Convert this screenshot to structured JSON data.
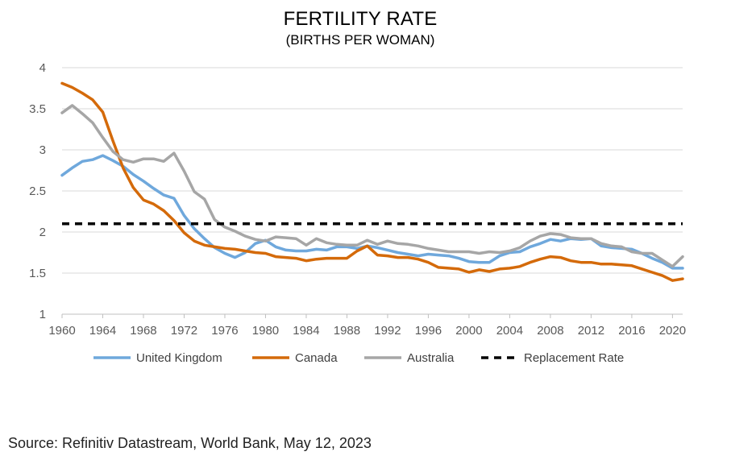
{
  "chart_data": {
    "type": "line",
    "title": "FERTILITY RATE",
    "subtitle": "(BIRTHS PER WOMAN)",
    "xlabel": "",
    "ylabel": "",
    "xlim": [
      1960,
      2021
    ],
    "ylim": [
      1,
      4
    ],
    "y_ticks": [
      "1",
      "1.5",
      "2",
      "2.5",
      "3",
      "3.5",
      "4"
    ],
    "x_ticks": [
      "1960",
      "1964",
      "1968",
      "1972",
      "1976",
      "1980",
      "1984",
      "1988",
      "1992",
      "1996",
      "2000",
      "2004",
      "2008",
      "2012",
      "2016",
      "2020"
    ],
    "grid": "horizontal",
    "legend_position": "bottom",
    "x": [
      1960,
      1961,
      1962,
      1963,
      1964,
      1965,
      1966,
      1967,
      1968,
      1969,
      1970,
      1971,
      1972,
      1973,
      1974,
      1975,
      1976,
      1977,
      1978,
      1979,
      1980,
      1981,
      1982,
      1983,
      1984,
      1985,
      1986,
      1987,
      1988,
      1989,
      1990,
      1991,
      1992,
      1993,
      1994,
      1995,
      1996,
      1997,
      1998,
      1999,
      2000,
      2001,
      2002,
      2003,
      2004,
      2005,
      2006,
      2007,
      2008,
      2009,
      2010,
      2011,
      2012,
      2013,
      2014,
      2015,
      2016,
      2017,
      2018,
      2019,
      2020,
      2021
    ],
    "series": [
      {
        "name": "United Kingdom",
        "color": "#6fa8dc",
        "dashed": false,
        "values": [
          2.69,
          2.78,
          2.86,
          2.88,
          2.93,
          2.87,
          2.8,
          2.7,
          2.62,
          2.53,
          2.45,
          2.41,
          2.2,
          2.04,
          1.92,
          1.81,
          1.74,
          1.69,
          1.75,
          1.86,
          1.9,
          1.82,
          1.78,
          1.77,
          1.77,
          1.79,
          1.78,
          1.82,
          1.82,
          1.8,
          1.83,
          1.81,
          1.78,
          1.75,
          1.73,
          1.71,
          1.73,
          1.72,
          1.71,
          1.68,
          1.64,
          1.63,
          1.63,
          1.71,
          1.75,
          1.76,
          1.82,
          1.86,
          1.91,
          1.89,
          1.92,
          1.91,
          1.92,
          1.83,
          1.81,
          1.8,
          1.79,
          1.74,
          1.68,
          1.63,
          1.56,
          1.56
        ]
      },
      {
        "name": "Canada",
        "color": "#d46a0a",
        "dashed": false,
        "values": [
          3.81,
          3.76,
          3.69,
          3.61,
          3.46,
          3.11,
          2.78,
          2.54,
          2.39,
          2.34,
          2.26,
          2.14,
          1.99,
          1.89,
          1.84,
          1.82,
          1.8,
          1.79,
          1.77,
          1.75,
          1.74,
          1.7,
          1.69,
          1.68,
          1.65,
          1.67,
          1.68,
          1.68,
          1.68,
          1.77,
          1.83,
          1.72,
          1.71,
          1.69,
          1.69,
          1.67,
          1.63,
          1.57,
          1.56,
          1.55,
          1.51,
          1.54,
          1.52,
          1.55,
          1.56,
          1.58,
          1.63,
          1.67,
          1.7,
          1.69,
          1.65,
          1.63,
          1.63,
          1.61,
          1.61,
          1.6,
          1.59,
          1.55,
          1.51,
          1.47,
          1.41,
          1.43
        ]
      },
      {
        "name": "Australia",
        "color": "#a6a6a6",
        "dashed": false,
        "values": [
          3.45,
          3.54,
          3.44,
          3.33,
          3.15,
          2.98,
          2.88,
          2.85,
          2.89,
          2.89,
          2.86,
          2.96,
          2.74,
          2.49,
          2.4,
          2.15,
          2.06,
          2.01,
          1.95,
          1.91,
          1.89,
          1.94,
          1.93,
          1.92,
          1.84,
          1.92,
          1.87,
          1.85,
          1.84,
          1.84,
          1.9,
          1.85,
          1.89,
          1.86,
          1.85,
          1.83,
          1.8,
          1.78,
          1.76,
          1.76,
          1.76,
          1.74,
          1.76,
          1.75,
          1.77,
          1.81,
          1.89,
          1.95,
          1.98,
          1.97,
          1.93,
          1.92,
          1.92,
          1.86,
          1.83,
          1.82,
          1.76,
          1.74,
          1.74,
          1.66,
          1.58,
          1.7
        ]
      },
      {
        "name": "Replacement Rate",
        "color": "#000000",
        "dashed": true,
        "values": [
          2.1,
          2.1,
          2.1,
          2.1,
          2.1,
          2.1,
          2.1,
          2.1,
          2.1,
          2.1,
          2.1,
          2.1,
          2.1,
          2.1,
          2.1,
          2.1,
          2.1,
          2.1,
          2.1,
          2.1,
          2.1,
          2.1,
          2.1,
          2.1,
          2.1,
          2.1,
          2.1,
          2.1,
          2.1,
          2.1,
          2.1,
          2.1,
          2.1,
          2.1,
          2.1,
          2.1,
          2.1,
          2.1,
          2.1,
          2.1,
          2.1,
          2.1,
          2.1,
          2.1,
          2.1,
          2.1,
          2.1,
          2.1,
          2.1,
          2.1,
          2.1,
          2.1,
          2.1,
          2.1,
          2.1,
          2.1,
          2.1,
          2.1,
          2.1,
          2.1,
          2.1,
          2.1
        ]
      }
    ]
  },
  "source": "Source: Refinitiv Datastream, World Bank, May 12, 2023"
}
